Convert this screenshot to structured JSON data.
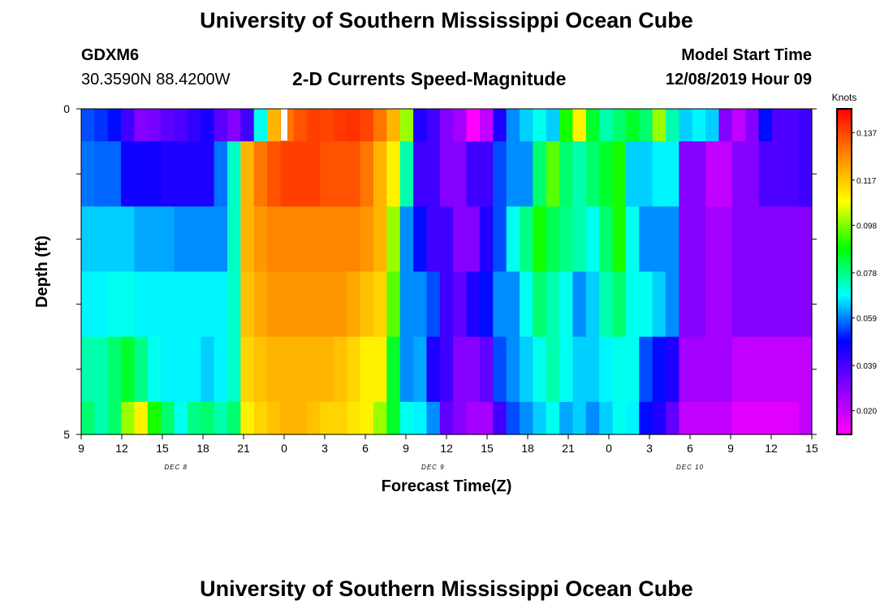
{
  "page": {
    "title_top": "University of Southern Mississippi Ocean Cube",
    "title_bottom": "University of Southern Mississippi Ocean Cube",
    "station_id": "GDXM6",
    "station_coords": "30.3590N 88.4200W",
    "model_label": "Model Start Time",
    "model_time": "12/08/2019 Hour 09"
  },
  "chart_data": {
    "type": "heatmap",
    "title": "2-D Currents Speed-Magnitude",
    "xlabel": "Forecast Time(Z)",
    "ylabel": "Depth (ft)",
    "x_ticks": [
      "9",
      "12",
      "15",
      "18",
      "21",
      "0",
      "3",
      "6",
      "9",
      "12",
      "15",
      "18",
      "21",
      "0",
      "3",
      "6",
      "9",
      "12",
      "15"
    ],
    "y_ticks": [
      "0",
      "5"
    ],
    "day_labels": [
      {
        "label": "DEC 8",
        "hour_index": 7
      },
      {
        "label": "DEC 9",
        "hour_index": 26
      },
      {
        "label": "DEC 10",
        "hour_index": 45
      }
    ],
    "x_range_hours": [
      0,
      54
    ],
    "y_range_ft": [
      0,
      5
    ],
    "colorbar": {
      "unit": "Knots",
      "ticks": [
        "0.137",
        "0.117",
        "0.098",
        "0.078",
        "0.059",
        "0.039",
        "0.020"
      ],
      "range": [
        0.01,
        0.147
      ],
      "colors": [
        "#ff00ff",
        "#8800ff",
        "#0000ff",
        "#00ffff",
        "#00ff00",
        "#ffff00",
        "#ff8800",
        "#ff0000"
      ]
    },
    "rows": [
      {
        "depth_range": [
          0,
          0.5
        ],
        "speeds": [
          0.055,
          0.053,
          0.05,
          0.04,
          0.03,
          0.032,
          0.036,
          0.038,
          0.042,
          0.046,
          0.036,
          0.03,
          0.04,
          0.07,
          0.12,
          0.13,
          0.135,
          0.138,
          0.137,
          0.139,
          0.14,
          0.137,
          0.13,
          0.12,
          0.1,
          0.045,
          0.04,
          0.03,
          0.025,
          0.01,
          0.02,
          0.045,
          0.06,
          0.065,
          0.07,
          0.065,
          0.09,
          0.11,
          0.085,
          0.075,
          0.08,
          0.085,
          0.08,
          0.1,
          0.075,
          0.065,
          0.068,
          0.065,
          0.03,
          0.02,
          0.03,
          0.05,
          0.038,
          0.038,
          0.04
        ]
      },
      {
        "depth_range": [
          0.5,
          1.5
        ],
        "speeds": [
          0.058,
          0.057,
          0.057,
          0.047,
          0.047,
          0.047,
          0.045,
          0.045,
          0.045,
          0.045,
          0.058,
          0.073,
          0.12,
          0.13,
          0.135,
          0.138,
          0.138,
          0.138,
          0.135,
          0.135,
          0.135,
          0.13,
          0.12,
          0.11,
          0.075,
          0.04,
          0.04,
          0.03,
          0.03,
          0.04,
          0.04,
          0.055,
          0.06,
          0.06,
          0.08,
          0.095,
          0.08,
          0.075,
          0.08,
          0.085,
          0.09,
          0.065,
          0.065,
          0.068,
          0.068,
          0.03,
          0.03,
          0.02,
          0.02,
          0.03,
          0.03,
          0.038,
          0.038,
          0.038,
          0.04
        ]
      },
      {
        "depth_range": [
          1.5,
          2.5
        ],
        "speeds": [
          0.065,
          0.065,
          0.065,
          0.065,
          0.062,
          0.062,
          0.062,
          0.06,
          0.06,
          0.06,
          0.06,
          0.073,
          0.12,
          0.125,
          0.128,
          0.128,
          0.128,
          0.128,
          0.128,
          0.128,
          0.128,
          0.125,
          0.12,
          0.1,
          0.06,
          0.05,
          0.04,
          0.04,
          0.03,
          0.03,
          0.045,
          0.055,
          0.07,
          0.078,
          0.09,
          0.082,
          0.078,
          0.075,
          0.07,
          0.08,
          0.09,
          0.07,
          0.06,
          0.06,
          0.06,
          0.03,
          0.03,
          0.025,
          0.025,
          0.03,
          0.03,
          0.03,
          0.03,
          0.03,
          0.03
        ]
      },
      {
        "depth_range": [
          2.5,
          3.5
        ],
        "speeds": [
          0.068,
          0.068,
          0.07,
          0.07,
          0.068,
          0.068,
          0.068,
          0.068,
          0.068,
          0.068,
          0.068,
          0.073,
          0.118,
          0.122,
          0.125,
          0.125,
          0.125,
          0.125,
          0.125,
          0.125,
          0.122,
          0.118,
          0.115,
          0.095,
          0.06,
          0.06,
          0.055,
          0.04,
          0.035,
          0.045,
          0.05,
          0.06,
          0.06,
          0.07,
          0.08,
          0.075,
          0.07,
          0.06,
          0.065,
          0.075,
          0.08,
          0.07,
          0.07,
          0.065,
          0.06,
          0.03,
          0.03,
          0.025,
          0.025,
          0.03,
          0.03,
          0.03,
          0.03,
          0.03,
          0.03
        ]
      },
      {
        "depth_range": [
          3.5,
          4.5
        ],
        "speeds": [
          0.075,
          0.075,
          0.08,
          0.085,
          0.078,
          0.07,
          0.068,
          0.068,
          0.068,
          0.065,
          0.068,
          0.073,
          0.115,
          0.118,
          0.12,
          0.12,
          0.12,
          0.12,
          0.12,
          0.118,
          0.115,
          0.11,
          0.11,
          0.085,
          0.06,
          0.062,
          0.045,
          0.04,
          0.03,
          0.03,
          0.035,
          0.055,
          0.06,
          0.065,
          0.07,
          0.075,
          0.07,
          0.065,
          0.065,
          0.068,
          0.07,
          0.07,
          0.055,
          0.05,
          0.045,
          0.025,
          0.025,
          0.025,
          0.025,
          0.02,
          0.02,
          0.02,
          0.02,
          0.02,
          0.02
        ]
      },
      {
        "depth_range": [
          4.5,
          5
        ],
        "speeds": [
          0.08,
          0.075,
          0.08,
          0.1,
          0.11,
          0.09,
          0.08,
          0.07,
          0.078,
          0.08,
          0.075,
          0.08,
          0.11,
          0.115,
          0.118,
          0.12,
          0.12,
          0.118,
          0.115,
          0.115,
          0.112,
          0.11,
          0.1,
          0.085,
          0.07,
          0.068,
          0.06,
          0.035,
          0.03,
          0.025,
          0.025,
          0.04,
          0.055,
          0.06,
          0.065,
          0.07,
          0.062,
          0.065,
          0.06,
          0.065,
          0.07,
          0.068,
          0.05,
          0.045,
          0.035,
          0.02,
          0.02,
          0.02,
          0.02,
          0.015,
          0.015,
          0.015,
          0.015,
          0.015,
          0.02
        ]
      }
    ]
  }
}
